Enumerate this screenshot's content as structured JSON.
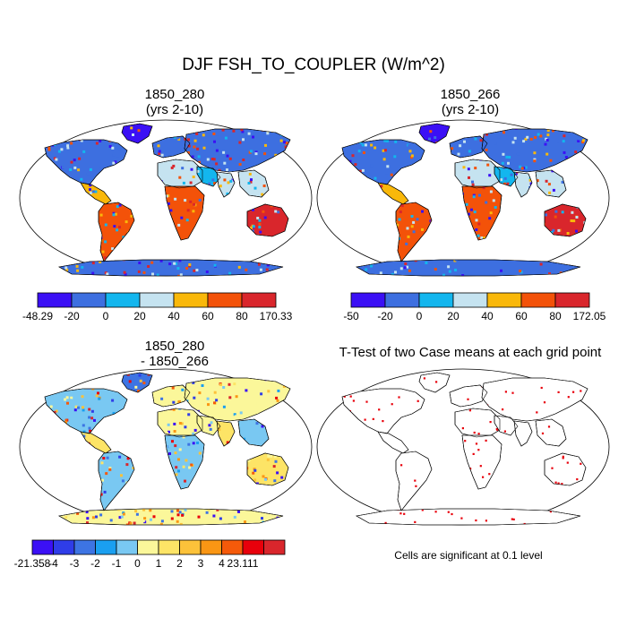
{
  "title": "DJF FSH_TO_COUPLER (W/m^2)",
  "colors": {
    "outline": "#000000",
    "ocean": "#ffffff",
    "sig": "#e8000b"
  },
  "chart_data": [
    {
      "type": "heatmap",
      "title_line1": "1850_280",
      "title_line2": "(yrs 2-10)",
      "colorbar": {
        "min_label": "-48.29",
        "max_label": "170.33",
        "ticks": [
          "-20",
          "0",
          "20",
          "40",
          "60",
          "80"
        ],
        "colors": [
          "#3b10f5",
          "#3d6fe0",
          "#13b6ee",
          "#c5e3f0",
          "#f9b80a",
          "#f35209",
          "#d9262c"
        ]
      },
      "regions": [
        {
          "name": "north-america",
          "color": "#3d6fe0"
        },
        {
          "name": "greenland",
          "color": "#3b10f5"
        },
        {
          "name": "central-america",
          "color": "#f9b80a"
        },
        {
          "name": "south-america",
          "color": "#f35209"
        },
        {
          "name": "europe",
          "color": "#3d6fe0"
        },
        {
          "name": "asia",
          "color": "#3d6fe0"
        },
        {
          "name": "north-africa",
          "color": "#c5e3f0"
        },
        {
          "name": "africa-south",
          "color": "#f35209"
        },
        {
          "name": "middle-east",
          "color": "#13b6ee"
        },
        {
          "name": "india",
          "color": "#c5e3f0"
        },
        {
          "name": "southeast-asia",
          "color": "#c5e3f0"
        },
        {
          "name": "australia",
          "color": "#d9262c"
        },
        {
          "name": "antarctica",
          "color": "#3d6fe0"
        }
      ]
    },
    {
      "type": "heatmap",
      "title_line1": "1850_266",
      "title_line2": "(yrs 2-10)",
      "colorbar": {
        "min_label": "-50",
        "max_label": "172.05",
        "ticks": [
          "-20",
          "0",
          "20",
          "40",
          "60",
          "80"
        ],
        "colors": [
          "#3b10f5",
          "#3d6fe0",
          "#13b6ee",
          "#c5e3f0",
          "#f9b80a",
          "#f35209",
          "#d9262c"
        ]
      },
      "regions": [
        {
          "name": "north-america",
          "color": "#3d6fe0"
        },
        {
          "name": "greenland",
          "color": "#3b10f5"
        },
        {
          "name": "central-america",
          "color": "#f9b80a"
        },
        {
          "name": "south-america",
          "color": "#f35209"
        },
        {
          "name": "europe",
          "color": "#3d6fe0"
        },
        {
          "name": "asia",
          "color": "#3d6fe0"
        },
        {
          "name": "north-africa",
          "color": "#c5e3f0"
        },
        {
          "name": "africa-south",
          "color": "#f35209"
        },
        {
          "name": "middle-east",
          "color": "#13b6ee"
        },
        {
          "name": "india",
          "color": "#c5e3f0"
        },
        {
          "name": "southeast-asia",
          "color": "#c5e3f0"
        },
        {
          "name": "australia",
          "color": "#d9262c"
        },
        {
          "name": "antarctica",
          "color": "#3d6fe0"
        }
      ]
    },
    {
      "type": "heatmap",
      "title_line1": "1850_280",
      "title_line2": "- 1850_266",
      "colorbar": {
        "min_label": "-21.358",
        "max_label": "23.111",
        "ticks": [
          "-4",
          "-3",
          "-2",
          "-1",
          "0",
          "1",
          "2",
          "3",
          "4"
        ],
        "colors": [
          "#3b10f5",
          "#2f3de8",
          "#3d74e3",
          "#1a9ff0",
          "#79c8f2",
          "#fbf79a",
          "#fde466",
          "#fcc23a",
          "#fa9614",
          "#f55a0a",
          "#e8000b",
          "#d9262c"
        ]
      },
      "regions": [
        {
          "name": "north-america",
          "color": "#79c8f2"
        },
        {
          "name": "greenland",
          "color": "#3d74e3"
        },
        {
          "name": "central-america",
          "color": "#fde466"
        },
        {
          "name": "south-america",
          "color": "#79c8f2"
        },
        {
          "name": "europe",
          "color": "#fbf79a"
        },
        {
          "name": "asia",
          "color": "#fbf79a"
        },
        {
          "name": "north-africa",
          "color": "#fbf79a"
        },
        {
          "name": "africa-south",
          "color": "#79c8f2"
        },
        {
          "name": "middle-east",
          "color": "#fbf79a"
        },
        {
          "name": "india",
          "color": "#fde466"
        },
        {
          "name": "southeast-asia",
          "color": "#79c8f2"
        },
        {
          "name": "australia",
          "color": "#fde466"
        },
        {
          "name": "antarctica",
          "color": "#fbf79a"
        }
      ]
    },
    {
      "type": "heatmap",
      "title_line1": "T-Test of two Case means at each grid point",
      "note": "Cells are significant at 0.1 level",
      "regions": [
        {
          "name": "north-america",
          "color": "#ffffff"
        },
        {
          "name": "greenland",
          "color": "#ffffff"
        },
        {
          "name": "central-america",
          "color": "#ffffff"
        },
        {
          "name": "south-america",
          "color": "#ffffff"
        },
        {
          "name": "europe",
          "color": "#ffffff"
        },
        {
          "name": "asia",
          "color": "#ffffff"
        },
        {
          "name": "north-africa",
          "color": "#ffffff"
        },
        {
          "name": "africa-south",
          "color": "#ffffff"
        },
        {
          "name": "middle-east",
          "color": "#ffffff"
        },
        {
          "name": "india",
          "color": "#ffffff"
        },
        {
          "name": "southeast-asia",
          "color": "#ffffff"
        },
        {
          "name": "australia",
          "color": "#ffffff"
        },
        {
          "name": "antarctica",
          "color": "#ffffff"
        }
      ]
    }
  ]
}
